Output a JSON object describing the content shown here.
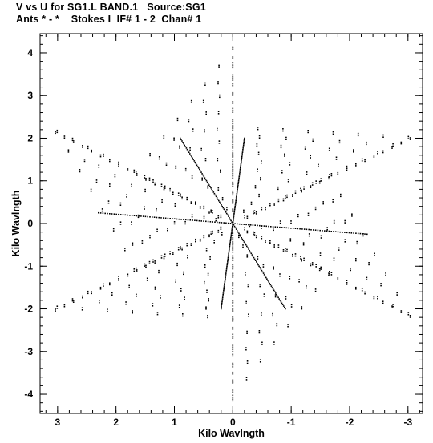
{
  "header": {
    "line1": "V vs U for SG1.L BAND.1   Source:SG1",
    "line2": "Ants * - *    Stokes I  IF# 1 - 2  Chan# 1"
  },
  "chart_data": {
    "type": "scatter",
    "title": "V vs U for SG1.L BAND.1   Source:SG1",
    "subtitle": "Ants * - *    Stokes I  IF# 1 - 2  Chan# 1",
    "xlabel": "Kilo Wavlngth",
    "ylabel": "Kilo Wavlngth",
    "xlim": [
      3.3,
      -3.25
    ],
    "ylim": [
      -4.45,
      4.45
    ],
    "x_ticks": [
      3,
      2,
      1,
      0,
      -1,
      -2,
      -3
    ],
    "x_tick_labels": [
      "3",
      "2",
      "1",
      "0",
      "-1",
      "-2",
      "-3"
    ],
    "y_ticks": [
      4,
      3,
      2,
      1,
      0,
      -1,
      -2,
      -3,
      -4
    ],
    "y_tick_labels": [
      "4",
      "3",
      "2",
      "1",
      "0",
      "-1",
      "-2",
      "-3",
      "-4"
    ],
    "x_minor_step": 0.2,
    "y_minor_step": 0.2,
    "grid": false,
    "marker": "dot",
    "color": "#000000",
    "pattern": {
      "description": "uv-coverage of a 6-arm (hexagonal star) array, points symmetric about origin",
      "star_tips": [
        [
          0,
          4.2
        ],
        [
          3.1,
          2.2
        ],
        [
          3.1,
          -2.05
        ],
        [
          0,
          -4.2
        ],
        [
          -3.1,
          -2.2
        ],
        [
          -3.1,
          2.05
        ]
      ],
      "dense_tracks": [
        {
          "from": [
            -0.2,
            2.0
          ],
          "to": [
            0.2,
            -2.0
          ]
        },
        {
          "from": [
            0.9,
            2.0
          ],
          "to": [
            -0.9,
            -2.0
          ]
        },
        {
          "from": [
            2.3,
            0.25
          ],
          "to": [
            -2.3,
            -0.25
          ]
        }
      ]
    }
  }
}
